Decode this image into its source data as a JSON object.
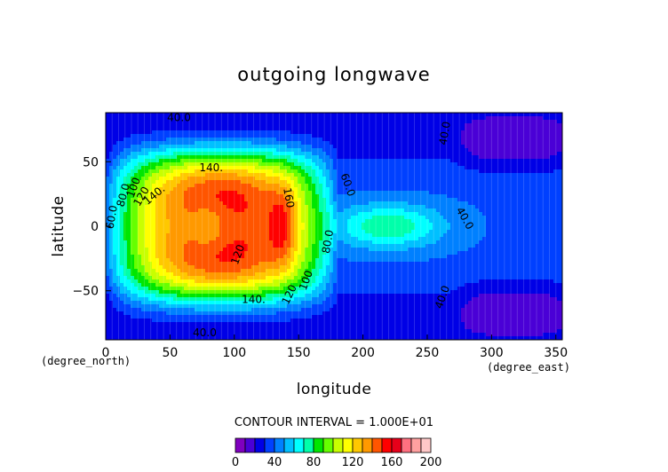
{
  "chart_data": {
    "type": "contour",
    "title": "outgoing longwave",
    "xlabel": "longitude",
    "ylabel": "latitude",
    "x_unit": "(degree_east)",
    "y_unit": "(degree_north)",
    "xlim": [
      0,
      355
    ],
    "ylim": [
      -88,
      88
    ],
    "x_ticks": [
      {
        "value": 0,
        "label": "0"
      },
      {
        "value": 50,
        "label": "50"
      },
      {
        "value": 100,
        "label": "100"
      },
      {
        "value": 150,
        "label": "150"
      },
      {
        "value": 200,
        "label": "200"
      },
      {
        "value": 250,
        "label": "250"
      },
      {
        "value": 300,
        "label": "300"
      },
      {
        "value": 350,
        "label": "350"
      }
    ],
    "y_ticks": [
      {
        "value": 50,
        "label": "50"
      },
      {
        "value": 0,
        "label": "0"
      },
      {
        "value": -50,
        "label": "−50"
      }
    ],
    "contour_interval_text": "CONTOUR INTERVAL = 1.000E+01",
    "contour_interval": 10,
    "colorbar": {
      "min": 0,
      "max": 200,
      "step": 10,
      "colors": [
        "#7f00bf",
        "#4a00d6",
        "#0000e6",
        "#0040ff",
        "#0080ff",
        "#00c0ff",
        "#00ffff",
        "#00ffaa",
        "#00e600",
        "#66ff00",
        "#c8ff00",
        "#ffff00",
        "#ffc800",
        "#ff9900",
        "#ff5500",
        "#ff0000",
        "#e6001a",
        "#ff7080",
        "#ffa0a0",
        "#ffc8c8"
      ],
      "ticks": [
        {
          "value": 0,
          "label": "0"
        },
        {
          "value": 40,
          "label": "40"
        },
        {
          "value": 80,
          "label": "80"
        },
        {
          "value": 120,
          "label": "120"
        },
        {
          "value": 160,
          "label": "160"
        },
        {
          "value": 200,
          "label": "200"
        }
      ]
    },
    "contour_labels": [
      {
        "text": "40.0",
        "lon": 57,
        "lat": 84,
        "angle": 0
      },
      {
        "text": "40.0",
        "lon": 77,
        "lat": -83,
        "angle": 0
      },
      {
        "text": "60.0",
        "lon": 5,
        "lat": 7,
        "angle": -80
      },
      {
        "text": "80.0",
        "lon": 14,
        "lat": 24,
        "angle": -75
      },
      {
        "text": "100",
        "lon": 22,
        "lat": 30,
        "angle": -70
      },
      {
        "text": "120",
        "lon": 28,
        "lat": 23,
        "angle": -60
      },
      {
        "text": "140.",
        "lon": 38,
        "lat": 24,
        "angle": -40
      },
      {
        "text": "140.",
        "lon": 82,
        "lat": 45,
        "angle": 0
      },
      {
        "text": "140.",
        "lon": 115,
        "lat": -57,
        "angle": 0
      },
      {
        "text": "120",
        "lon": 103,
        "lat": -22,
        "angle": -70
      },
      {
        "text": "160",
        "lon": 142,
        "lat": 22,
        "angle": 80
      },
      {
        "text": "120",
        "lon": 143,
        "lat": -53,
        "angle": -65
      },
      {
        "text": "100",
        "lon": 156,
        "lat": -42,
        "angle": -70
      },
      {
        "text": "80.0",
        "lon": 173,
        "lat": -12,
        "angle": -80
      },
      {
        "text": "60.0",
        "lon": 188,
        "lat": 32,
        "angle": 70
      },
      {
        "text": "40.0",
        "lon": 279,
        "lat": 6,
        "angle": 60
      },
      {
        "text": "40.0",
        "lon": 264,
        "lat": 72,
        "angle": -80
      },
      {
        "text": "40.0",
        "lon": 262,
        "lat": -55,
        "angle": -70
      }
    ]
  }
}
